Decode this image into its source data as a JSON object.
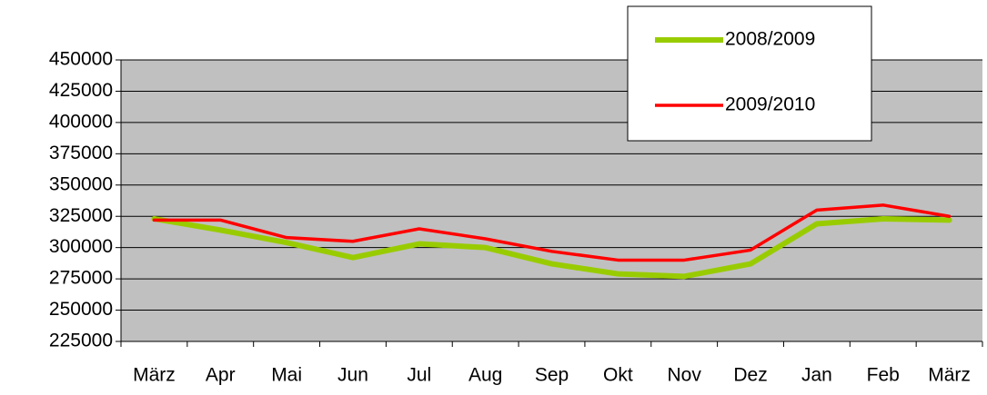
{
  "chart_data": {
    "type": "line",
    "categories": [
      "März",
      "Apr",
      "Mai",
      "Jun",
      "Jul",
      "Aug",
      "Sep",
      "Okt",
      "Nov",
      "Dez",
      "Jan",
      "Feb",
      "März"
    ],
    "series": [
      {
        "name": "2008/2009",
        "color": "#99cc00",
        "values": [
          323000,
          314000,
          304000,
          292000,
          303000,
          300000,
          287000,
          279000,
          277000,
          287000,
          319000,
          323000,
          322000
        ]
      },
      {
        "name": "2009/2010",
        "color": "#ff0000",
        "values": [
          322000,
          322000,
          308000,
          305000,
          315000,
          307000,
          297000,
          290000,
          290000,
          298000,
          330000,
          334000,
          325000
        ]
      }
    ],
    "ylim": [
      225000,
      450000
    ],
    "yticks": [
      225000,
      250000,
      275000,
      300000,
      325000,
      350000,
      375000,
      400000,
      425000,
      450000
    ],
    "grid": true,
    "legend": "top-right",
    "background": "#c0c0c0"
  }
}
